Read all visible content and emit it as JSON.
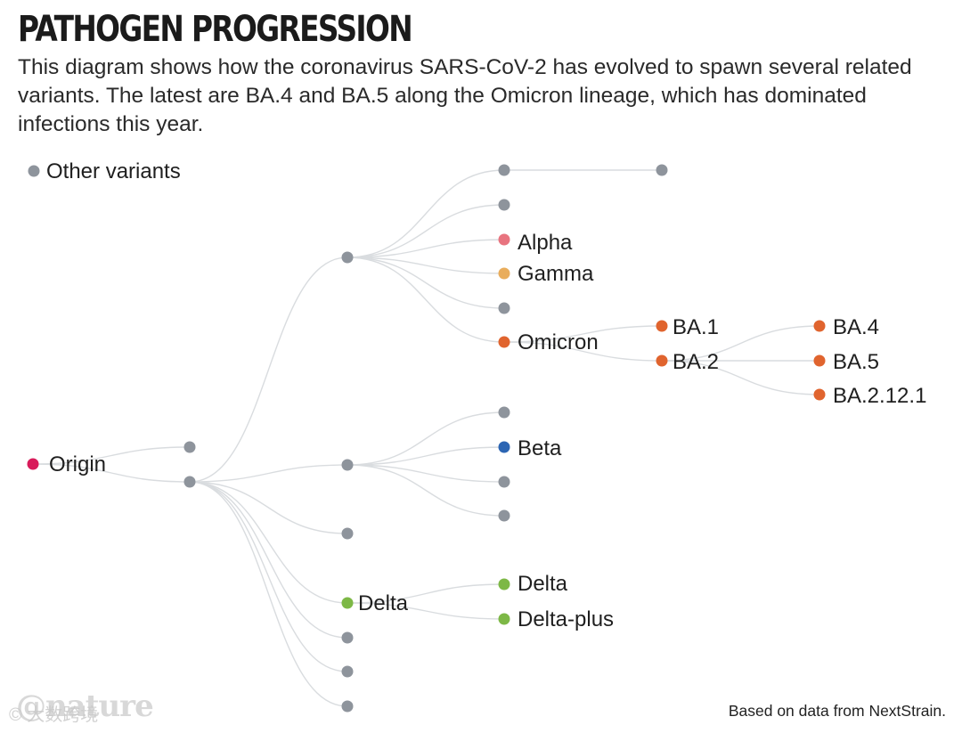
{
  "header": {
    "title": "PATHOGEN PROGRESSION",
    "subtitle": "This diagram shows how the coronavirus SARS-CoV-2 has evolved to spawn several related variants. The latest are BA.4 and BA.5 along the Omicron lineage, which has dominated infections this year."
  },
  "legend": {
    "other_label": "Other variants"
  },
  "colors": {
    "other": "#8e949c",
    "origin": "#d81b5a",
    "alpha": "#e8747f",
    "gamma": "#e9ad5c",
    "omicron": "#e0642e",
    "beta": "#2c65b3",
    "delta": "#7db846",
    "link": "#d9dcdf"
  },
  "nodes": {
    "origin": "Origin",
    "alpha": "Alpha",
    "gamma": "Gamma",
    "omicron": "Omicron",
    "ba1": "BA.1",
    "ba2": "BA.2",
    "ba4": "BA.4",
    "ba5": "BA.5",
    "ba2121": "BA.2.12.1",
    "beta": "Beta",
    "delta_parent": "Delta",
    "delta_child": "Delta",
    "delta_plus": "Delta-plus"
  },
  "footer": {
    "source": "Based on data from NextStrain.",
    "brand": "@nature",
    "watermark": "© 大数跨境"
  }
}
